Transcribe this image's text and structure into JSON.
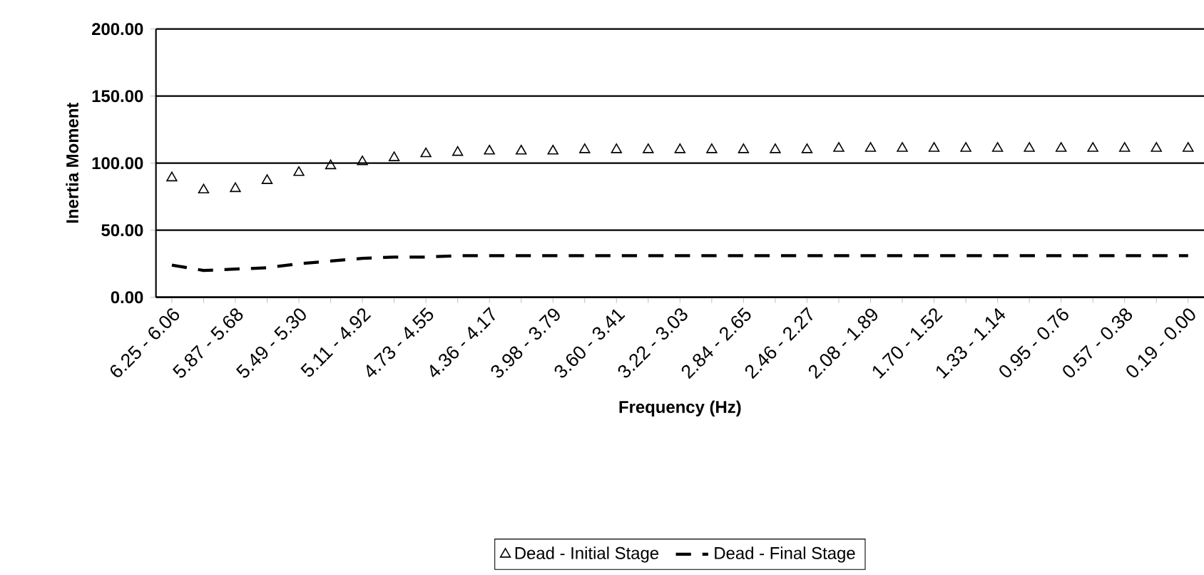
{
  "chart_data": {
    "type": "line",
    "xlabel": "Frequency (Hz)",
    "ylabel": "Inertia Moment",
    "categories": [
      "6.25 - 6.06",
      null,
      "5.87 - 5.68",
      null,
      "5.49 - 5.30",
      null,
      "5.11 - 4.92",
      null,
      "4.73 - 4.55",
      null,
      "4.36 - 4.17",
      null,
      "3.98 - 3.79",
      null,
      "3.60 - 3.41",
      null,
      "3.22 - 3.03",
      null,
      "2.84 - 2.65",
      null,
      "2.46 - 2.27",
      null,
      "2.08 - 1.89",
      null,
      "1.70 - 1.52",
      null,
      "1.33 - 1.14",
      null,
      "0.95 - 0.76",
      null,
      "0.57 - 0.38",
      null,
      "0.19 - 0.00"
    ],
    "series": [
      {
        "name": "Dead - Initial Stage",
        "type": "scatter",
        "marker": "triangle",
        "color": "#000000",
        "values": [
          89,
          80,
          81,
          87,
          93,
          98,
          101,
          104,
          107,
          108,
          109,
          109,
          109,
          110,
          110,
          110,
          110,
          110,
          110,
          110,
          110,
          111,
          111,
          111,
          111,
          111,
          111,
          111,
          111,
          111,
          111,
          111,
          111
        ]
      },
      {
        "name": "Dead - Final Stage",
        "line_style": "dashed",
        "marker": "none",
        "color": "#000000",
        "values": [
          24,
          20,
          21,
          22,
          25,
          27,
          29,
          30,
          30,
          31,
          31,
          31,
          31,
          31,
          31,
          31,
          31,
          31,
          31,
          31,
          31,
          31,
          31,
          31,
          31,
          31,
          31,
          31,
          31,
          31,
          31,
          31,
          31
        ]
      }
    ],
    "ylim": [
      0,
      200
    ],
    "yticks": [
      {
        "value": 0,
        "label": "0.00"
      },
      {
        "value": 50,
        "label": "50.00"
      },
      {
        "value": 100,
        "label": "100.00"
      },
      {
        "value": 150,
        "label": "150.00"
      },
      {
        "value": 200,
        "label": "200.00"
      }
    ],
    "grid": "y",
    "legend": "bottom"
  }
}
